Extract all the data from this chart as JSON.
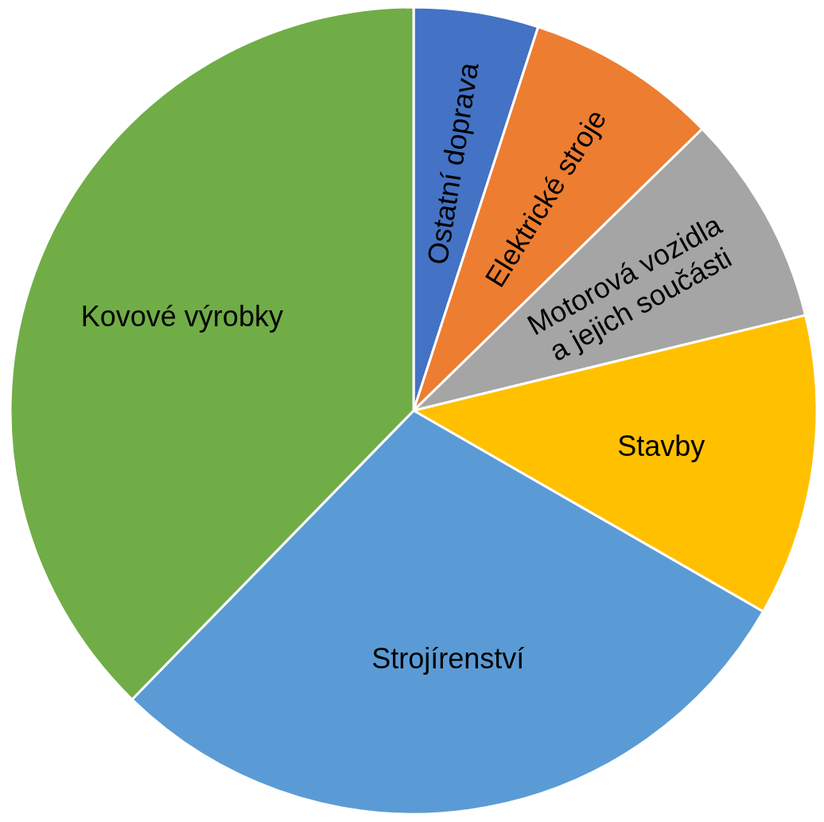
{
  "chart_data": {
    "type": "pie",
    "categories": [
      "Ostatní doprava",
      "Elektrické stroje",
      "Motorová vozidla a jejich součásti",
      "Stavby",
      "Strojírenství",
      "Kovové výrobky"
    ],
    "values": [
      5.0,
      7.7,
      8.5,
      12.1,
      29.0,
      37.7
    ],
    "colors": [
      "#4472c4",
      "#ed7d31",
      "#a5a5a5",
      "#ffc000",
      "#5b9bd5",
      "#70ad47"
    ]
  }
}
